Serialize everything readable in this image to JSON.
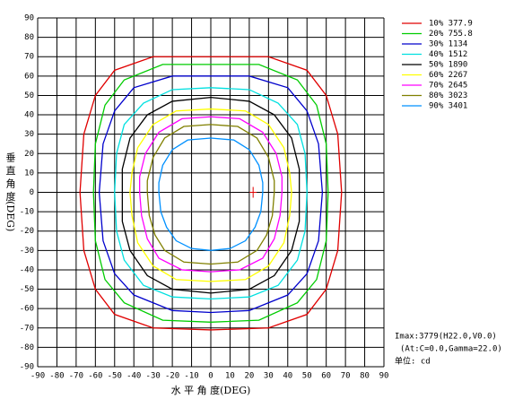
{
  "chart_data": {
    "type": "line",
    "xlabel": "水 平 角 度(DEG)",
    "ylabel": "垂 直 角 度(DEG)",
    "xlim": [
      -90,
      90
    ],
    "ylim": [
      -90,
      90
    ],
    "xticks": [
      -90,
      -80,
      -70,
      -60,
      -50,
      -40,
      -30,
      -20,
      -10,
      0,
      10,
      20,
      30,
      40,
      50,
      60,
      70,
      80,
      90
    ],
    "yticks": [
      -90,
      -80,
      -70,
      -60,
      -50,
      -40,
      -30,
      -20,
      -10,
      0,
      10,
      20,
      30,
      40,
      50,
      60,
      70,
      80,
      90
    ],
    "grid": true,
    "legend": "right",
    "series": [
      {
        "name": "10% 377.9",
        "color": "#e00000",
        "x": [
          0,
          30,
          50,
          60,
          66,
          68,
          66,
          60,
          50,
          30,
          0,
          -30,
          -50,
          -60,
          -66,
          -68,
          -66,
          -60,
          -50,
          -30,
          0
        ],
        "values": [
          70,
          70,
          63,
          50,
          30,
          0,
          -30,
          -50,
          -63,
          -70,
          -71,
          -70,
          -63,
          -50,
          -30,
          0,
          30,
          50,
          63,
          70,
          70
        ]
      },
      {
        "name": "20% 755.8",
        "color": "#00cc00",
        "x": [
          0,
          25,
          45,
          55,
          60,
          61,
          60,
          55,
          45,
          25,
          0,
          -25,
          -45,
          -55,
          -60,
          -61,
          -60,
          -55,
          -45,
          -25,
          0
        ],
        "values": [
          66,
          66,
          58,
          45,
          25,
          0,
          -25,
          -45,
          -57,
          -66,
          -67,
          -66,
          -57,
          -45,
          -25,
          0,
          25,
          45,
          58,
          66,
          66
        ]
      },
      {
        "name": "30% 1134",
        "color": "#0000cc",
        "x": [
          0,
          20,
          40,
          50,
          56,
          58,
          56,
          50,
          40,
          20,
          0,
          -20,
          -40,
          -50,
          -56,
          -58,
          -56,
          -50,
          -40,
          -20,
          0
        ],
        "values": [
          60,
          60,
          54,
          42,
          25,
          0,
          -25,
          -42,
          -53,
          -61,
          -62,
          -61,
          -53,
          -42,
          -25,
          0,
          25,
          42,
          54,
          60,
          60
        ]
      },
      {
        "name": "40% 1512",
        "color": "#00e0e0",
        "x": [
          0,
          20,
          35,
          45,
          49,
          50,
          49,
          45,
          35,
          20,
          0,
          -20,
          -35,
          -45,
          -49,
          -50,
          -49,
          -45,
          -35,
          -20,
          0
        ],
        "values": [
          54,
          53,
          46,
          35,
          20,
          0,
          -20,
          -35,
          -48,
          -54,
          -55,
          -54,
          -48,
          -35,
          -20,
          0,
          20,
          35,
          46,
          53,
          54
        ]
      },
      {
        "name": "50% 1890",
        "color": "#000000",
        "x": [
          0,
          20,
          33,
          42,
          46,
          46,
          46,
          42,
          33,
          20,
          0,
          -20,
          -33,
          -42,
          -46,
          -46,
          -46,
          -42,
          -33,
          -20,
          0
        ],
        "values": [
          49,
          47,
          40,
          28,
          12,
          0,
          -15,
          -30,
          -43,
          -50,
          -52,
          -50,
          -43,
          -30,
          -15,
          0,
          12,
          28,
          40,
          47,
          49
        ]
      },
      {
        "name": "60% 2267",
        "color": "#ffff00",
        "x": [
          0,
          18,
          30,
          38,
          41,
          42,
          41,
          38,
          30,
          18,
          0,
          -18,
          -30,
          -38,
          -41,
          -42,
          -41,
          -38,
          -30,
          -18,
          0
        ],
        "values": [
          43,
          42,
          35,
          23,
          10,
          0,
          -12,
          -26,
          -38,
          -45,
          -46,
          -45,
          -38,
          -26,
          -12,
          0,
          10,
          23,
          35,
          42,
          43
        ]
      },
      {
        "name": "70% 2645",
        "color": "#ff00ff",
        "x": [
          0,
          15,
          27,
          34,
          37,
          37,
          36,
          33,
          27,
          15,
          0,
          -15,
          -27,
          -33,
          -36,
          -37,
          -37,
          -34,
          -27,
          -15,
          0
        ],
        "values": [
          39,
          38,
          31,
          20,
          8,
          0,
          -12,
          -24,
          -34,
          -40,
          -41,
          -40,
          -34,
          -24,
          -12,
          0,
          8,
          20,
          31,
          38,
          39
        ]
      },
      {
        "name": "80% 3023",
        "color": "#808000",
        "x": [
          0,
          14,
          24,
          30,
          33,
          33,
          32,
          29,
          24,
          14,
          0,
          -14,
          -24,
          -29,
          -32,
          -33,
          -33,
          -30,
          -24,
          -14,
          0
        ],
        "values": [
          35,
          34,
          28,
          18,
          6,
          0,
          -12,
          -22,
          -30,
          -36,
          -37,
          -36,
          -30,
          -22,
          -12,
          0,
          6,
          18,
          28,
          34,
          35
        ]
      },
      {
        "name": "90% 3401",
        "color": "#0090ff",
        "x": [
          0,
          12,
          20,
          25,
          27,
          27,
          26,
          23,
          18,
          10,
          0,
          -10,
          -18,
          -23,
          -26,
          -27,
          -27,
          -25,
          -20,
          -12,
          0
        ],
        "values": [
          28,
          27,
          22,
          14,
          5,
          0,
          -10,
          -18,
          -25,
          -29,
          -30,
          -29,
          -25,
          -18,
          -10,
          0,
          5,
          14,
          22,
          27,
          28
        ]
      }
    ],
    "peak": {
      "x": 22,
      "y": 0,
      "color": "#e00000"
    },
    "annotations": [
      "Imax:3779(H22.0,V0.0)",
      "(At:C=0.0,Gamma=22.0)",
      "单位: cd"
    ]
  }
}
